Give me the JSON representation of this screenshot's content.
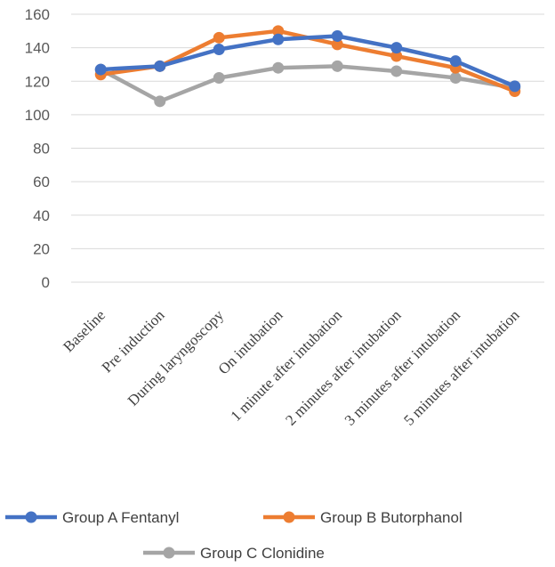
{
  "chart_data": {
    "type": "line",
    "categories": [
      "Baseline",
      "Pre induction",
      "During laryngoscopy",
      "On intubation",
      "1 minute after intubation",
      "2 minutes after intubation",
      "3 minutes after intubation",
      "5 minutes after intubation"
    ],
    "series": [
      {
        "name": "Group A Fentanyl",
        "color": "#4472C4",
        "values": [
          127,
          129,
          139,
          145,
          147,
          140,
          132,
          117
        ]
      },
      {
        "name": "Group B Butorphanol",
        "color": "#ED7D31",
        "values": [
          124,
          129,
          146,
          150,
          142,
          135,
          128,
          114
        ]
      },
      {
        "name": "Group C Clonidine",
        "color": "#A5A5A5",
        "values": [
          127,
          108,
          122,
          128,
          129,
          126,
          122,
          116
        ]
      }
    ],
    "yticks": [
      "0",
      "20",
      "40",
      "60",
      "80",
      "100",
      "120",
      "140",
      "160"
    ],
    "ylim": [
      0,
      160
    ],
    "grid": true,
    "legend": "bottom",
    "title": "",
    "xlabel": "",
    "ylabel": ""
  }
}
